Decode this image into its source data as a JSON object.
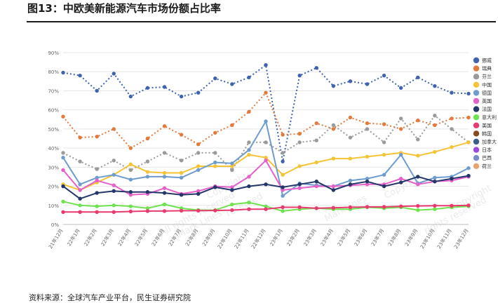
{
  "title": "图13：中欧美新能源汽车市场份额占比率",
  "source": "资料来源：全球汽车产业平台，民生证券研究院",
  "watermarks": [
    "Copyright",
    "reserved",
    "All rights reserved",
    "Mark Lines",
    "Copyright",
    "rights reserved",
    "Copyright",
    "MarkLines"
  ],
  "chart_data": {
    "type": "line",
    "x": [
      "21年12月",
      "22年1月",
      "22年2月",
      "22年3月",
      "22年4月",
      "22年5月",
      "22年6月",
      "22年7月",
      "22年8月",
      "22年9月",
      "22年10月",
      "22年11月",
      "22年12月",
      "23年1月",
      "23年2月",
      "23年3月",
      "23年4月",
      "23年5月",
      "23年6月",
      "23年7月",
      "23年8月",
      "23年9月",
      "23年10月",
      "23年11月",
      "23年12月"
    ],
    "y_ticks": [
      "0%",
      "10%",
      "20%",
      "30%",
      "40%",
      "50%",
      "60%",
      "70%",
      "80%",
      "90%"
    ],
    "ylim": [
      0,
      90
    ],
    "grid": true,
    "legend_position": "right",
    "series": [
      {
        "name": "挪威",
        "color": "#3f63ad",
        "dashed": true,
        "marker": "circle",
        "values": [
          79.5,
          78,
          70,
          79,
          67,
          71.5,
          72,
          67,
          69,
          76.5,
          73.5,
          77,
          83.5,
          33,
          78,
          82,
          72.5,
          75,
          73.5,
          78,
          71.5,
          77,
          72.5,
          69,
          68.5
        ]
      },
      {
        "name": "瑞典",
        "color": "#e27a3c",
        "dashed": true,
        "marker": "circle",
        "values": [
          56.5,
          45.5,
          46,
          50,
          40,
          45,
          51.5,
          47,
          42,
          48,
          52,
          59,
          69,
          47,
          47.5,
          53,
          50,
          56,
          53,
          52.5,
          50,
          54.5,
          52,
          55.5,
          56
        ]
      },
      {
        "name": "芬兰",
        "color": "#9a9a9a",
        "dashed": true,
        "marker": "circle",
        "values": [
          37.5,
          33,
          29,
          33.5,
          28.5,
          33,
          37.5,
          33.5,
          37.5,
          37.5,
          28.5,
          43,
          43,
          37.5,
          43,
          44,
          52,
          45.5,
          50,
          43,
          55.5,
          44.5,
          57,
          50,
          43
        ]
      },
      {
        "name": "中国",
        "color": "#f5c436",
        "dashed": false,
        "marker": "circle",
        "values": [
          21,
          18,
          22,
          26,
          31.5,
          27.5,
          27,
          27,
          30.5,
          30.5,
          30.5,
          36.5,
          35,
          26,
          30.5,
          32.5,
          34.5,
          34.5,
          35.5,
          36.5,
          37.5,
          36,
          38,
          40.5,
          43
        ]
      },
      {
        "name": "德国",
        "color": "#6e9ccf",
        "dashed": false,
        "marker": "circle",
        "values": [
          35,
          21,
          24.5,
          26,
          23.5,
          25,
          25,
          24.5,
          28.5,
          32.5,
          32,
          39,
          54,
          15,
          21.5,
          20.5,
          20,
          23,
          24,
          26,
          36.5,
          21.5,
          24.5,
          25,
          29.5
        ]
      },
      {
        "name": "英国",
        "color": "#e660c9",
        "dashed": false,
        "marker": "circle",
        "values": [
          28.5,
          18,
          23,
          20.5,
          15.5,
          16,
          19,
          16,
          17.5,
          20,
          19.5,
          25,
          33.5,
          18,
          19,
          20,
          20,
          20.5,
          21,
          21,
          24,
          21,
          22.5,
          23,
          25
        ]
      },
      {
        "name": "法国",
        "color": "#24376a",
        "dashed": false,
        "marker": "circle",
        "values": [
          20,
          13.5,
          16.5,
          17.5,
          17,
          17,
          16.5,
          15.5,
          16,
          19.5,
          18,
          20,
          21,
          19.5,
          21,
          22.5,
          18,
          21,
          22.5,
          20,
          22,
          25,
          22.5,
          24,
          25.5
        ]
      },
      {
        "name": "意大利",
        "color": "#6ee24f",
        "dashed": false,
        "marker": "circle",
        "values": [
          12,
          10,
          9.5,
          10,
          9.5,
          8.5,
          10.5,
          8.5,
          7.5,
          7.5,
          10.5,
          11.5,
          9.5,
          7,
          8,
          8.5,
          8,
          8,
          9,
          8.5,
          9,
          7.5,
          8,
          9,
          9.5
        ]
      },
      {
        "name": "美国",
        "color": "#e83a6e",
        "dashed": false,
        "marker": "circle",
        "values": [
          6.5,
          6.5,
          6.5,
          6.5,
          6.8,
          7,
          7,
          7.2,
          7.2,
          7.3,
          7.5,
          8,
          8,
          9,
          9,
          8.5,
          8.7,
          9,
          9.2,
          9.2,
          9.5,
          9.7,
          9.8,
          9.8,
          10
        ]
      }
    ],
    "extra_legend": [
      {
        "name": "韩国",
        "color": "#8a4a1c"
      },
      {
        "name": "加拿大",
        "color": "#3d5f8a"
      },
      {
        "name": "日本",
        "color": "#9b49e3"
      },
      {
        "name": "巴西",
        "color": "#7a8ccc"
      },
      {
        "name": "荷兰",
        "color": "#e8a36e"
      }
    ]
  }
}
